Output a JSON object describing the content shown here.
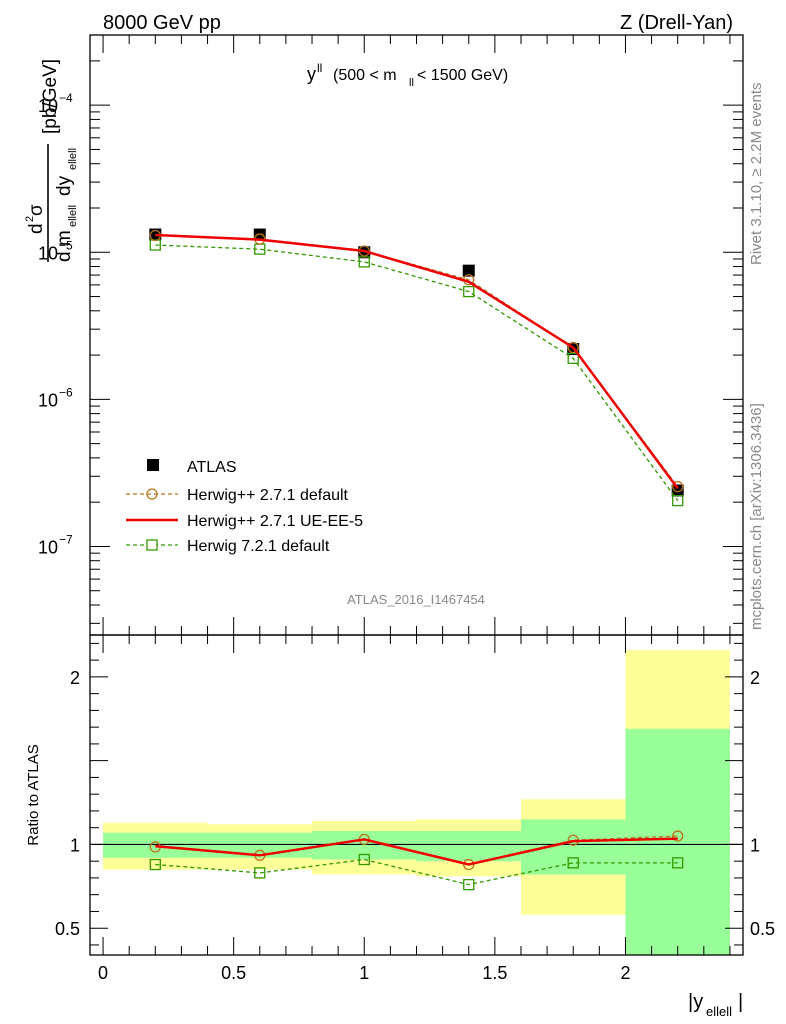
{
  "header": {
    "left": "8000 GeV pp",
    "right": "Z (Drell-Yan)"
  },
  "side_labels": {
    "rivet": "Rivet 3.1.10, ≥ 2.2M events",
    "mcplots": "mcplots.cern.ch [arXiv:1306.3436]"
  },
  "plot_label": {
    "main": "y",
    "main_sup": "ll",
    "cut_left": "(500 < m",
    "cut_sub": "ll",
    "cut_right": " < 1500 GeV)"
  },
  "analysis_id": "ATLAS_2016_I1467454",
  "ylabel_main": {
    "num_d": "d",
    "num_sup": "2",
    "num_sigma": "σ",
    "den_d1": "d m",
    "den_sub1": "ellell",
    "den_d2": " dy",
    "den_sub2": "ellell",
    "unit": "[pb/GeV]"
  },
  "ylabel_ratio": "Ratio to ATLAS",
  "xlabel": {
    "left": "|y",
    "sub": "ellell",
    "right": "|"
  },
  "legend": [
    {
      "label": "ATLAS",
      "color": "#000000",
      "style": "data"
    },
    {
      "label": "Herwig++ 2.7.1 default",
      "color": "#b8741a",
      "style": "dashed-circle"
    },
    {
      "label": "Herwig++ 2.7.1 UE-EE-5",
      "color": "#ee0000",
      "style": "solid"
    },
    {
      "label": "Herwig 7.2.1 default",
      "color": "#339900",
      "style": "dashed-square"
    }
  ],
  "chart_data": [
    {
      "type": "line",
      "panel": "main",
      "yscale": "log",
      "xlim": [
        -0.05,
        2.45
      ],
      "ylim": [
        2.5e-08,
        0.0003
      ],
      "x_ticks": [
        0,
        0.5,
        1,
        1.5,
        2
      ],
      "y_major_ticks": [
        {
          "value": 1e-07,
          "base": "10",
          "exp": "−7"
        },
        {
          "value": 1e-06,
          "base": "10",
          "exp": "−6"
        },
        {
          "value": 1e-05,
          "base": "10",
          "exp": "−5"
        },
        {
          "value": 0.0001,
          "base": "10",
          "exp": "−4"
        }
      ],
      "x": [
        0.2,
        0.6,
        1.0,
        1.4,
        1.8,
        2.2
      ],
      "x_edges": [
        0.0,
        0.4,
        0.8,
        1.2,
        1.6,
        2.0,
        2.4
      ],
      "series": [
        {
          "name": "ATLAS",
          "values": [
            1.32e-05,
            1.32e-05,
            1e-05,
            7.5e-06,
            2.2e-06,
            2.4e-07
          ]
        },
        {
          "name": "Herwig++ 2.7.1 default",
          "values": [
            1.3e-05,
            1.23e-05,
            1.02e-05,
            6.5e-06,
            2.25e-06,
            2.55e-07
          ]
        },
        {
          "name": "Herwig++ 2.7.1 UE-EE-5",
          "values": [
            1.31e-05,
            1.22e-05,
            1.02e-05,
            6.3e-06,
            2.25e-06,
            2.48e-07
          ]
        },
        {
          "name": "Herwig 7.2.1 default",
          "values": [
            1.12e-05,
            1.05e-05,
            8.6e-06,
            5.4e-06,
            1.9e-06,
            2.05e-07
          ]
        }
      ]
    },
    {
      "type": "line",
      "panel": "ratio",
      "yscale": "linear",
      "xlim": [
        -0.05,
        2.45
      ],
      "ylim": [
        0.34,
        2.25
      ],
      "x_ticks": [
        0,
        0.5,
        1,
        1.5,
        2
      ],
      "y_ticks": [
        0.5,
        1,
        2
      ],
      "x": [
        0.2,
        0.6,
        1.0,
        1.4,
        1.8,
        2.2
      ],
      "x_edges": [
        0.0,
        0.4,
        0.8,
        1.2,
        1.6,
        2.0,
        2.4
      ],
      "bands": {
        "yellow_lo": [
          0.85,
          0.85,
          0.82,
          0.81,
          0.58,
          0.2
        ],
        "yellow_hi": [
          1.13,
          1.12,
          1.14,
          1.15,
          1.27,
          2.16
        ],
        "green_lo": [
          0.92,
          0.92,
          0.91,
          0.9,
          0.82,
          0.2
        ],
        "green_hi": [
          1.07,
          1.07,
          1.08,
          1.08,
          1.15,
          1.69
        ]
      },
      "series": [
        {
          "name": "Herwig++ 2.7.1 default",
          "values": [
            0.985,
            0.935,
            1.03,
            0.88,
            1.025,
            1.05
          ]
        },
        {
          "name": "Herwig++ 2.7.1 UE-EE-5",
          "values": [
            0.99,
            0.935,
            1.03,
            0.88,
            1.02,
            1.035
          ]
        },
        {
          "name": "Herwig 7.2.1 default",
          "values": [
            0.88,
            0.83,
            0.91,
            0.76,
            0.89,
            0.89
          ]
        }
      ]
    }
  ]
}
